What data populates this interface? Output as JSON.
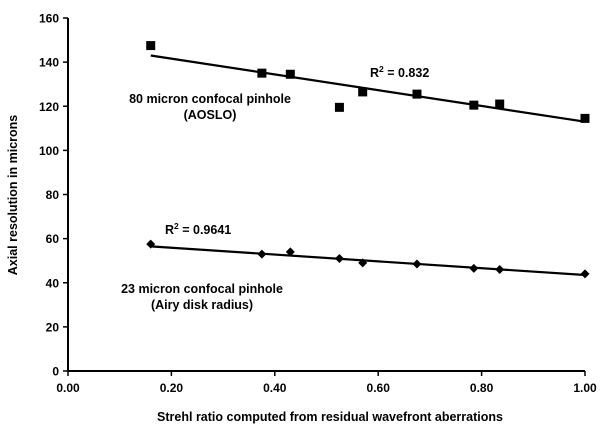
{
  "chart_data": {
    "type": "scatter",
    "title": "",
    "xlabel": "Strehl ratio computed from residual wavefront aberrations",
    "ylabel": "Axial resolution in microns",
    "xlim": [
      0.0,
      1.0
    ],
    "ylim": [
      0,
      160
    ],
    "xticks": [
      "0.00",
      "0.20",
      "0.40",
      "0.60",
      "0.80",
      "1.00"
    ],
    "yticks": [
      "0",
      "20",
      "40",
      "60",
      "80",
      "100",
      "120",
      "140",
      "160"
    ],
    "grid": false,
    "legend": "none",
    "series": [
      {
        "marker": "square",
        "x": [
          0.16,
          0.375,
          0.43,
          0.525,
          0.57,
          0.675,
          0.785,
          0.835,
          1.0
        ],
        "y": [
          147.5,
          135,
          134.5,
          119.5,
          126.5,
          125.5,
          120.5,
          121,
          114.5
        ],
        "trendline": {
          "x": [
            0.16,
            1.0
          ],
          "y": [
            143,
            113
          ]
        },
        "annotation_lines": [
          "80 micron confocal pinhole",
          "(AOSLO)"
        ],
        "r2_prefix": "R",
        "r2_exp": "2",
        "r2_value": " = 0.832"
      },
      {
        "marker": "diamond",
        "x": [
          0.16,
          0.375,
          0.43,
          0.525,
          0.57,
          0.675,
          0.785,
          0.835,
          1.0
        ],
        "y": [
          57.5,
          53,
          54,
          51,
          49,
          48.5,
          46.5,
          46,
          44
        ],
        "trendline": {
          "x": [
            0.16,
            1.0
          ],
          "y": [
            56.5,
            43.5
          ]
        },
        "annotation_lines": [
          "23 micron confocal pinhole",
          "(Airy disk radius)"
        ],
        "r2_prefix": "R",
        "r2_exp": "2",
        "r2_value": " = 0.9641"
      }
    ]
  }
}
